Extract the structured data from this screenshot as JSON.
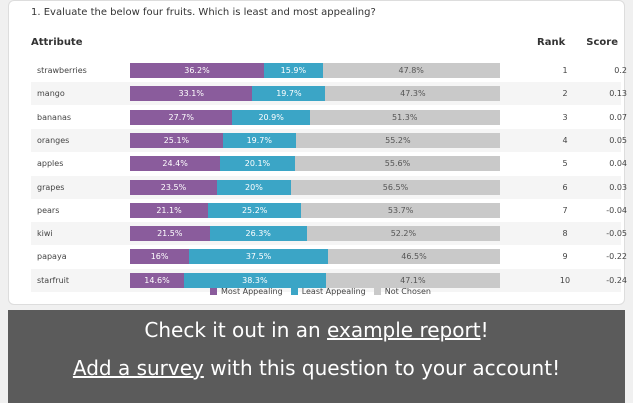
{
  "question": "1. Evaluate the below four fruits. Which is least and most appealing?",
  "columns": {
    "attribute": "Attribute",
    "rank": "Rank",
    "score": "Score"
  },
  "series": [
    {
      "name": "Most Appealing",
      "color": "#8a5c9c"
    },
    {
      "name": "Least Appealing",
      "color": "#3ba5c6"
    },
    {
      "name": "Not Chosen",
      "color": "#c9c9c9"
    }
  ],
  "rows": [
    {
      "attribute": "strawberries",
      "values": [
        36.2,
        15.9,
        47.8
      ],
      "value_labels": [
        "36.2%",
        "15.9%",
        "47.8%"
      ],
      "rank": 1,
      "score": 0.2
    },
    {
      "attribute": "mango",
      "values": [
        33.1,
        19.7,
        47.3
      ],
      "value_labels": [
        "33.1%",
        "19.7%",
        "47.3%"
      ],
      "rank": 2,
      "score": 0.13
    },
    {
      "attribute": "bananas",
      "values": [
        27.7,
        20.9,
        51.3
      ],
      "value_labels": [
        "27.7%",
        "20.9%",
        "51.3%"
      ],
      "rank": 3,
      "score": 0.07
    },
    {
      "attribute": "oranges",
      "values": [
        25.1,
        19.7,
        55.2
      ],
      "value_labels": [
        "25.1%",
        "19.7%",
        "55.2%"
      ],
      "rank": 4,
      "score": 0.05
    },
    {
      "attribute": "apples",
      "values": [
        24.4,
        20.1,
        55.6
      ],
      "value_labels": [
        "24.4%",
        "20.1%",
        "55.6%"
      ],
      "rank": 5,
      "score": 0.04
    },
    {
      "attribute": "grapes",
      "values": [
        23.5,
        20,
        56.5
      ],
      "value_labels": [
        "23.5%",
        "20%",
        "56.5%"
      ],
      "rank": 6,
      "score": 0.03
    },
    {
      "attribute": "pears",
      "values": [
        21.1,
        25.2,
        53.7
      ],
      "value_labels": [
        "21.1%",
        "25.2%",
        "53.7%"
      ],
      "rank": 7,
      "score": -0.04
    },
    {
      "attribute": "kiwi",
      "values": [
        21.5,
        26.3,
        52.2
      ],
      "value_labels": [
        "21.5%",
        "26.3%",
        "52.2%"
      ],
      "rank": 8,
      "score": -0.05
    },
    {
      "attribute": "papaya",
      "values": [
        16,
        37.5,
        46.5
      ],
      "value_labels": [
        "16%",
        "37.5%",
        "46.5%"
      ],
      "rank": 9,
      "score": -0.22
    },
    {
      "attribute": "starfruit",
      "values": [
        14.6,
        38.3,
        47.1
      ],
      "value_labels": [
        "14.6%",
        "38.3%",
        "47.1%"
      ],
      "rank": 10,
      "score": -0.24
    }
  ],
  "footer": {
    "line1": {
      "before": "Check it out in an ",
      "link": "example report",
      "after": "!"
    },
    "line2": {
      "link": "Add a survey",
      "after": " with this question to your account!"
    }
  }
}
